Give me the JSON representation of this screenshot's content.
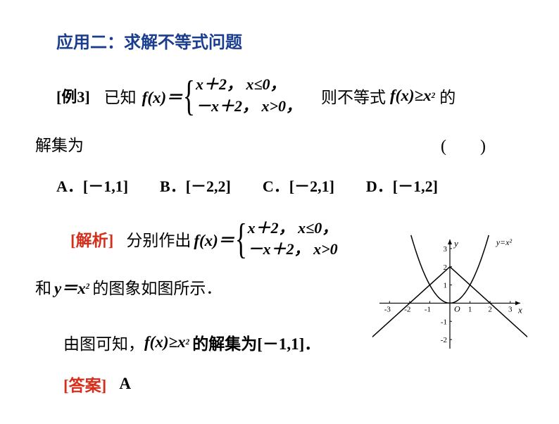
{
  "title": "应用二：求解不等式问题",
  "example": {
    "label": "[例3]",
    "known": "已知",
    "func_pre": "f(x)＝",
    "piecewise1_expr": "x＋2，",
    "piecewise1_cond": "x≤0，",
    "piecewise2_expr": "－x＋2，",
    "piecewise2_cond": "x>0，",
    "then_text": "则不等式",
    "ineq": "f(x)≥x",
    "ineq_sup": "2",
    "de": "的",
    "solset": "解集为"
  },
  "options": {
    "A": "A．[－1,1]",
    "B": "B．[－2,2]",
    "C": "C．[－2,1]",
    "D": "D．[－1,2]"
  },
  "paren": "(　　)",
  "solution": {
    "label": "[解析]",
    "text1": "分别作出",
    "func_pre": "f(x)＝",
    "piecewise1_expr": "x＋2，",
    "piecewise1_cond": "x≤0，",
    "piecewise2_expr": "－x＋2，",
    "piecewise2_cond": "x>0",
    "and_text": "和",
    "yx2": "y＝x",
    "yx2_sup": "2",
    "graph_text": "的图象如图所示．",
    "conclusion_pre": "由图可知，",
    "conclusion_ineq": "f(x)≥x",
    "conclusion_sup": "2",
    "conclusion_post": "的解集为[－1,1]．"
  },
  "answer": {
    "label": "[答案]",
    "value": "A"
  },
  "graph": {
    "xrange": [
      -3.5,
      3.5
    ],
    "yrange": [
      -2.5,
      3.5
    ],
    "xticks": [
      -3,
      -2,
      -1,
      1,
      2,
      3
    ],
    "yticks_pos": [
      1,
      2,
      3
    ],
    "yticks_neg": [
      -1,
      -2
    ],
    "origin_label": "O",
    "xlabel": "x",
    "ylabel": "y",
    "parabola_label": "y=x²",
    "axis_color": "#000000",
    "stroke_width": 1.2
  },
  "colors": {
    "title": "#1a3d8f",
    "red": "#d62e1a",
    "black": "#000000",
    "bg": "#ffffff"
  }
}
